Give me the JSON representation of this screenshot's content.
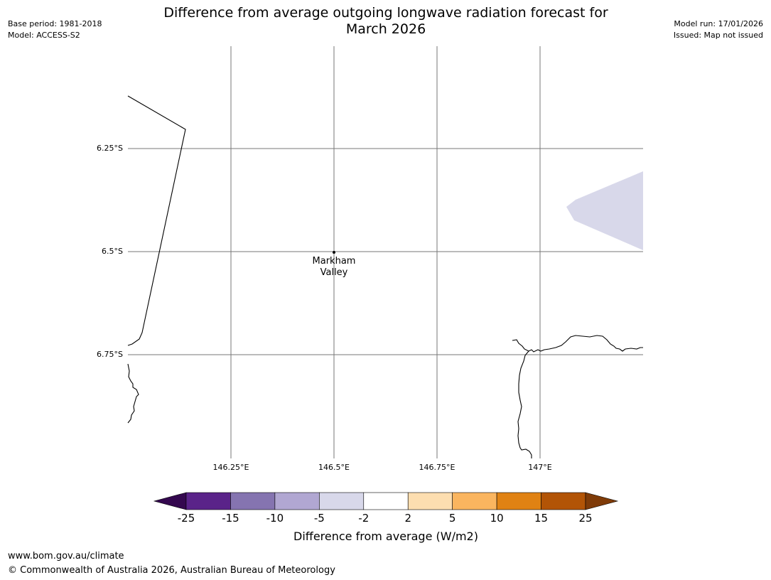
{
  "header": {
    "title_line1": "Difference from average outgoing longwave radiation forecast for",
    "title_line2": "March 2026",
    "base_period": "Base period: 1981-2018",
    "model": "Model: ACCESS-S2",
    "model_run": "Model run: 17/01/2026",
    "issued": "Issued: Map not issued"
  },
  "map": {
    "lat_labels": [
      "6.25°S",
      "6.5°S",
      "6.75°S"
    ],
    "lon_labels": [
      "146.25°E",
      "146.5°E",
      "146.75°E",
      "147°E"
    ],
    "location": {
      "name_line1": "Markham",
      "name_line2": "Valley"
    },
    "anomaly_region_color": "#d8d8ea"
  },
  "colorbar": {
    "title": "Difference from average (W/m2)",
    "ticks": [
      "-25",
      "-15",
      "-10",
      "-5",
      "-2",
      "2",
      "5",
      "10",
      "15",
      "25"
    ],
    "colors": [
      "#5a2389",
      "#8574b0",
      "#b1a7d2",
      "#d8d8ea",
      "#ffffff",
      "#fddeb0",
      "#fab55f",
      "#e08213",
      "#b25406"
    ],
    "low_extend_color": "#34084f",
    "high_extend_color": "#7f3b08"
  },
  "footer": {
    "url": "www.bom.gov.au/climate",
    "copyright": "© Commonwealth of Australia 2026, Australian Bureau of Meteorology"
  }
}
